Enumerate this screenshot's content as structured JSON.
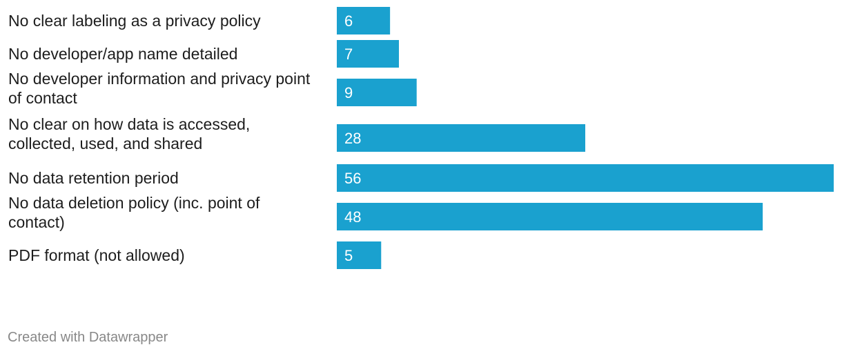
{
  "chart_data": {
    "type": "bar",
    "orientation": "horizontal",
    "categories": [
      "No clear labeling as a privacy policy",
      "No developer/app name detailed",
      "No developer information and privacy point of contact",
      "No clear on how data is accessed, collected, used, and shared",
      "No data retention period",
      "No data deletion policy (inc. point of contact)",
      "PDF format (not allowed)"
    ],
    "category_lines": [
      [
        "No clear labeling as a privacy policy"
      ],
      [
        "No developer/app name detailed"
      ],
      [
        "No developer information and privacy point",
        "of contact"
      ],
      [
        "No clear on how data is accessed,",
        "collected, used, and shared"
      ],
      [
        "No data retention period"
      ],
      [
        "No data deletion policy (inc. point of",
        "contact)"
      ],
      [
        "PDF format (not allowed)"
      ]
    ],
    "values": [
      6,
      7,
      9,
      28,
      56,
      48,
      5
    ],
    "xlim": [
      0,
      56
    ],
    "data_labels": true,
    "grid": false,
    "bar_color": "#1aa1cf"
  },
  "footer": {
    "credit": "Created with Datawrapper"
  }
}
